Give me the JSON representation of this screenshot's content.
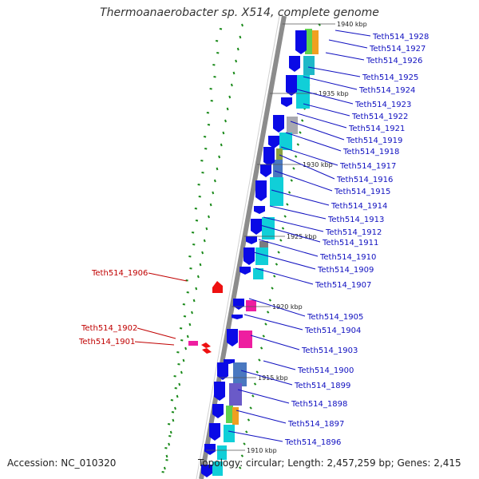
{
  "title": "Thermoanaerobacter sp. X514, complete genome",
  "accession_text": "Accession: NC_010320",
  "summary_text": "Topology: circular; Length: 2,457,259 bp; Genes: 2,415",
  "colors": {
    "backbone": "#8c8c8c",
    "cds_forward": "#0a0ae6",
    "cds_feature": "#10cfd8",
    "gene_label": "#1010c0",
    "reverse_label": "#c00000",
    "reverse_gene": "#ee1010",
    "rna_gene": "#ee1ea0",
    "gc_skew": "#1a8a1a"
  },
  "kbp_ticks": [
    "1935 kbp",
    "1930 kbp",
    "1925 kbp",
    "1920 kbp",
    "1915 kbp",
    "1910 kbp",
    "1940 kbp"
  ],
  "forward_genes": [
    "Teth514_1928",
    "Teth514_1927",
    "Teth514_1926",
    "Teth514_1925",
    "Teth514_1924",
    "Teth514_1923",
    "Teth514_1922",
    "Teth514_1921",
    "Teth514_1919",
    "Teth514_1918",
    "Teth514_1917",
    "Teth514_1916",
    "Teth514_1915",
    "Teth514_1914",
    "Teth514_1913",
    "Teth514_1912",
    "Teth514_1911",
    "Teth514_1910",
    "Teth514_1909",
    "Teth514_1907",
    "Teth514_1905",
    "Teth514_1904",
    "Teth514_1903",
    "Teth514_1900",
    "Teth514_1899",
    "Teth514_1898",
    "Teth514_1897",
    "Teth514_1896"
  ],
  "reverse_genes": [
    "Teth514_1906",
    "Teth514_1902",
    "Teth514_1901"
  ]
}
